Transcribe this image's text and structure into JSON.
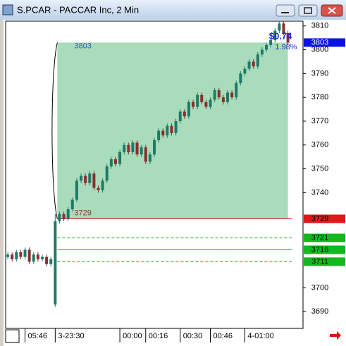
{
  "chart_data": {
    "type": "candlestick",
    "title": "S.PCAR - PACCAR Inc, 2 Min",
    "open": [
      3713,
      3714,
      3712,
      3715,
      3713,
      3716,
      3711,
      3714,
      3712,
      3713,
      3710,
      3693,
      3728,
      3731,
      3729,
      3733,
      3737,
      3745,
      3747,
      3744,
      3748,
      3742,
      3741,
      3745,
      3751,
      3754,
      3752,
      3757,
      3760,
      3757,
      3761,
      3756,
      3759,
      3753,
      3756,
      3762,
      3766,
      3764,
      3768,
      3765,
      3770,
      3774,
      3772,
      3778,
      3776,
      3781,
      3778,
      3776,
      3779,
      3783,
      3780,
      3778,
      3782,
      3780,
      3786,
      3790,
      3792,
      3795,
      3793,
      3798,
      3800,
      3802,
      3804,
      3808,
      3811,
      3807
    ],
    "high": [
      3715,
      3715,
      3716,
      3716,
      3717,
      3717,
      3715,
      3715,
      3714,
      3714,
      3713,
      3731,
      3732,
      3732,
      3734,
      3738,
      3746,
      3748,
      3748,
      3749,
      3749,
      3743,
      3746,
      3752,
      3755,
      3755,
      3758,
      3761,
      3761,
      3762,
      3762,
      3760,
      3760,
      3757,
      3763,
      3767,
      3767,
      3769,
      3769,
      3771,
      3775,
      3775,
      3779,
      3779,
      3782,
      3782,
      3779,
      3780,
      3784,
      3784,
      3781,
      3783,
      3783,
      3787,
      3791,
      3793,
      3796,
      3796,
      3799,
      3801,
      3803,
      3805,
      3809,
      3812,
      3812,
      3808
    ],
    "low": [
      3712,
      3711,
      3711,
      3712,
      3712,
      3710,
      3710,
      3711,
      3711,
      3709,
      3709,
      3692,
      3727,
      3728,
      3728,
      3732,
      3736,
      3744,
      3743,
      3743,
      3741,
      3740,
      3740,
      3744,
      3750,
      3751,
      3751,
      3756,
      3756,
      3756,
      3755,
      3755,
      3752,
      3752,
      3755,
      3761,
      3763,
      3763,
      3764,
      3764,
      3769,
      3771,
      3771,
      3775,
      3775,
      3777,
      3775,
      3775,
      3778,
      3779,
      3777,
      3777,
      3779,
      3779,
      3785,
      3789,
      3791,
      3792,
      3792,
      3797,
      3799,
      3801,
      3803,
      3807,
      3806,
      3802
    ],
    "close": [
      3714,
      3712,
      3715,
      3713,
      3716,
      3711,
      3714,
      3712,
      3713,
      3710,
      3712,
      3728,
      3731,
      3729,
      3733,
      3737,
      3745,
      3747,
      3744,
      3748,
      3742,
      3741,
      3745,
      3751,
      3754,
      3752,
      3757,
      3760,
      3757,
      3761,
      3756,
      3759,
      3753,
      3756,
      3762,
      3766,
      3764,
      3768,
      3765,
      3770,
      3774,
      3772,
      3778,
      3776,
      3781,
      3778,
      3776,
      3779,
      3783,
      3780,
      3778,
      3782,
      3780,
      3786,
      3790,
      3792,
      3795,
      3793,
      3798,
      3800,
      3802,
      3804,
      3808,
      3811,
      3807,
      3803
    ],
    "up_color": "#1f7a68",
    "down_color": "#8b2e2e",
    "xlim": [
      -0.5,
      68.5
    ],
    "xticks": [
      {
        "value": 4,
        "label": "05:46"
      },
      {
        "value": 11,
        "label": "3-23:30"
      },
      {
        "value": 26,
        "label": "00:00"
      },
      {
        "value": 32,
        "label": "00:16"
      },
      {
        "value": 40,
        "label": "00:30"
      },
      {
        "value": 47,
        "label": "00:46"
      },
      {
        "value": 55,
        "label": "4-01:00"
      }
    ],
    "ylim": [
      3683,
      3812
    ],
    "yticks": [
      3690,
      3700,
      3740,
      3750,
      3760,
      3770,
      3780,
      3790,
      3800,
      3810
    ],
    "range_box": {
      "low": 3729,
      "high": 3803,
      "start": 11.5,
      "end": 65,
      "color": "#a9dcba"
    },
    "levels": [
      {
        "value": 3803,
        "color": "#0a14e0",
        "text_color": "#ffffff",
        "line": "none"
      },
      {
        "value": 3729,
        "color": "#e01818",
        "text_color": "#000000",
        "line": "solid"
      },
      {
        "value": 3721,
        "color": "#12b81e",
        "text_color": "#000000",
        "line": "dashed"
      },
      {
        "value": 3716,
        "color": "#12b81e",
        "text_color": "#000000",
        "line": "solid"
      },
      {
        "value": 3711,
        "color": "#12b81e",
        "text_color": "#000000",
        "line": "dashed"
      }
    ],
    "annotations": [
      {
        "text": "$0.74",
        "color": "#1a2ae0"
      },
      {
        "text": "1.98%",
        "color": "#1a2ae0"
      }
    ]
  }
}
